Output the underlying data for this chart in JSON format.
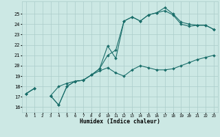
{
  "xlabel": "Humidex (Indice chaleur)",
  "background_color": "#cce8e4",
  "grid_color": "#aaccca",
  "line_color": "#1a6e6a",
  "hours": [
    0,
    1,
    2,
    3,
    4,
    5,
    6,
    7,
    8,
    9,
    10,
    11,
    12,
    13,
    14,
    15,
    16,
    17,
    18,
    19,
    20,
    21,
    22,
    23
  ],
  "line_upper": [
    17.3,
    17.8,
    null,
    17.1,
    16.2,
    18.0,
    18.5,
    18.6,
    19.1,
    19.7,
    21.9,
    20.7,
    24.3,
    24.7,
    24.3,
    24.9,
    25.1,
    25.6,
    25.0,
    24.2,
    24.0,
    23.9,
    23.9,
    23.5
  ],
  "line_mid": [
    17.3,
    17.8,
    null,
    17.1,
    16.2,
    18.0,
    18.5,
    18.6,
    19.1,
    19.7,
    21.0,
    21.5,
    24.3,
    24.7,
    24.3,
    24.9,
    25.1,
    25.3,
    24.9,
    24.0,
    23.8,
    23.9,
    23.9,
    23.5
  ],
  "line_lower": [
    17.3,
    17.8,
    null,
    17.1,
    18.0,
    18.3,
    18.5,
    18.6,
    19.1,
    19.5,
    19.8,
    19.3,
    19.0,
    19.6,
    20.0,
    19.8,
    19.6,
    19.6,
    19.7,
    20.0,
    20.3,
    20.6,
    20.8,
    21.0
  ],
  "ylim": [
    15.5,
    26.2
  ],
  "yticks": [
    16,
    17,
    18,
    19,
    20,
    21,
    22,
    23,
    24,
    25
  ],
  "xlim": [
    -0.5,
    23.5
  ],
  "xticks": [
    0,
    1,
    2,
    3,
    4,
    5,
    6,
    7,
    8,
    9,
    10,
    11,
    12,
    13,
    14,
    15,
    16,
    17,
    18,
    19,
    20,
    21,
    22,
    23
  ]
}
